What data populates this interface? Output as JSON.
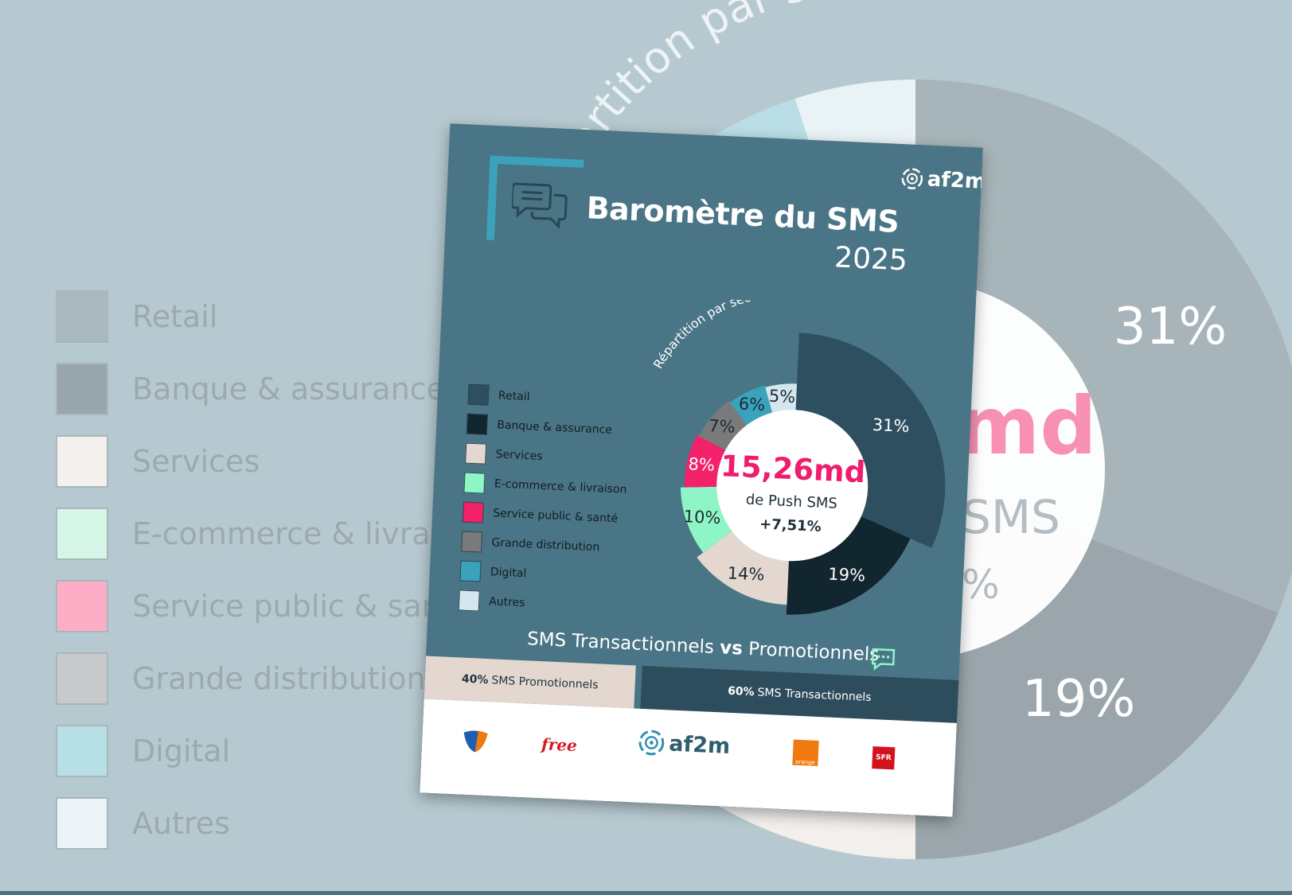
{
  "brand": {
    "logo_text": "af2m"
  },
  "flyer": {
    "title": "Baromètre du SMS",
    "year": "2025"
  },
  "donut_center": {
    "value": "15,26md",
    "label": "de Push SMS",
    "growth": "+7,51%"
  },
  "chart_data": {
    "type": "pie",
    "title": "Répartition par secteur",
    "categories": [
      "Retail",
      "Banque & assurance",
      "Services",
      "E-commerce & livraison",
      "Service public & santé",
      "Grande distribution",
      "Digital",
      "Autres"
    ],
    "values": [
      31,
      19,
      14,
      10,
      8,
      7,
      6,
      5
    ],
    "value_labels": [
      "31%",
      "19%",
      "14%",
      "10%",
      "8%",
      "7%",
      "6%",
      "5%"
    ],
    "colors": [
      "#2d4f5f",
      "#12262f",
      "#e3d7cf",
      "#8ef6c6",
      "#f3206a",
      "#7a7a7a",
      "#3aa2bb",
      "#d4e6ee"
    ],
    "label_colors": [
      "#ffffff",
      "#ffffff",
      "#1b2b33",
      "#1b2b33",
      "#ffffff",
      "#1b2b33",
      "#1b2b33",
      "#1b2b33"
    ],
    "legend_placement": "left"
  },
  "split": {
    "heading_part1": "SMS Transactionnels",
    "heading_vs": "vs",
    "heading_part2": "Promotionnels",
    "promo_pct": "40%",
    "promo_label": "SMS Promotionnels",
    "promo_share": 40,
    "trans_pct": "60%",
    "trans_label": "SMS Transactionnels",
    "trans_share": 60
  },
  "operators": {
    "free": "free",
    "orange": "orange",
    "sfr": "SFR"
  },
  "background": {
    "arc_title": "Répartition par secteur",
    "label_31": "31%",
    "label_19": "19%",
    "center_fragment_1": "md",
    "center_fragment_2": "SMS",
    "center_fragment_3": "%",
    "legend": [
      "Retail",
      "Banque & assurance",
      "Services",
      "E-commerce & livraison",
      "Service public & santé",
      "Grande distribution",
      "Digital",
      "Autres"
    ],
    "legend_colors": [
      "#aab9bf",
      "#98a5aa",
      "#f3f0ee",
      "#d6f7e7",
      "#fbaec6",
      "#c8c9ca",
      "#b7dfe6",
      "#ecf4f7"
    ]
  }
}
